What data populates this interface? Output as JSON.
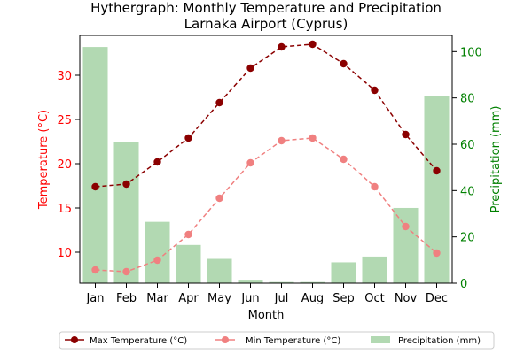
{
  "chart_data": {
    "type": "bar+line",
    "title_line1": "Hythergraph: Monthly Temperature and Precipitation",
    "title_line2": "Larnaka Airport (Cyprus)",
    "xlabel": "Month",
    "ylabel_left": "Temperature (°C)",
    "ylabel_right": "Precipitation (mm)",
    "categories": [
      "Jan",
      "Feb",
      "Mar",
      "Apr",
      "May",
      "Jun",
      "Jul",
      "Aug",
      "Sep",
      "Oct",
      "Nov",
      "Dec"
    ],
    "y_left_range": [
      6.5,
      34.5
    ],
    "y_left_ticks": [
      10,
      15,
      20,
      25,
      30
    ],
    "y_right_range": [
      0,
      107
    ],
    "y_right_ticks": [
      0,
      20,
      40,
      60,
      80,
      100
    ],
    "series": [
      {
        "name": "Max Temperature (°C)",
        "axis": "left",
        "kind": "line",
        "values": [
          17.4,
          17.7,
          20.2,
          22.9,
          26.9,
          30.8,
          33.2,
          33.5,
          31.3,
          28.3,
          23.3,
          19.2
        ]
      },
      {
        "name": "Min Temperature (°C)",
        "axis": "left",
        "kind": "line",
        "values": [
          8.0,
          7.8,
          9.1,
          12.0,
          16.1,
          20.1,
          22.6,
          22.9,
          20.5,
          17.4,
          12.9,
          9.9
        ]
      },
      {
        "name": "Precipitation (mm)",
        "axis": "right",
        "kind": "bar",
        "values": [
          102.0,
          61.0,
          26.5,
          16.5,
          10.5,
          1.5,
          0.5,
          0.5,
          9.0,
          11.5,
          32.5,
          81.0
        ]
      }
    ],
    "colors": {
      "max_line": "#8b0000",
      "min_line": "#f08080",
      "bars": "#b2d9b2",
      "left_axis": "#ff0000",
      "right_axis": "#008000"
    },
    "legend_position": "bottom-center",
    "grid": false
  }
}
